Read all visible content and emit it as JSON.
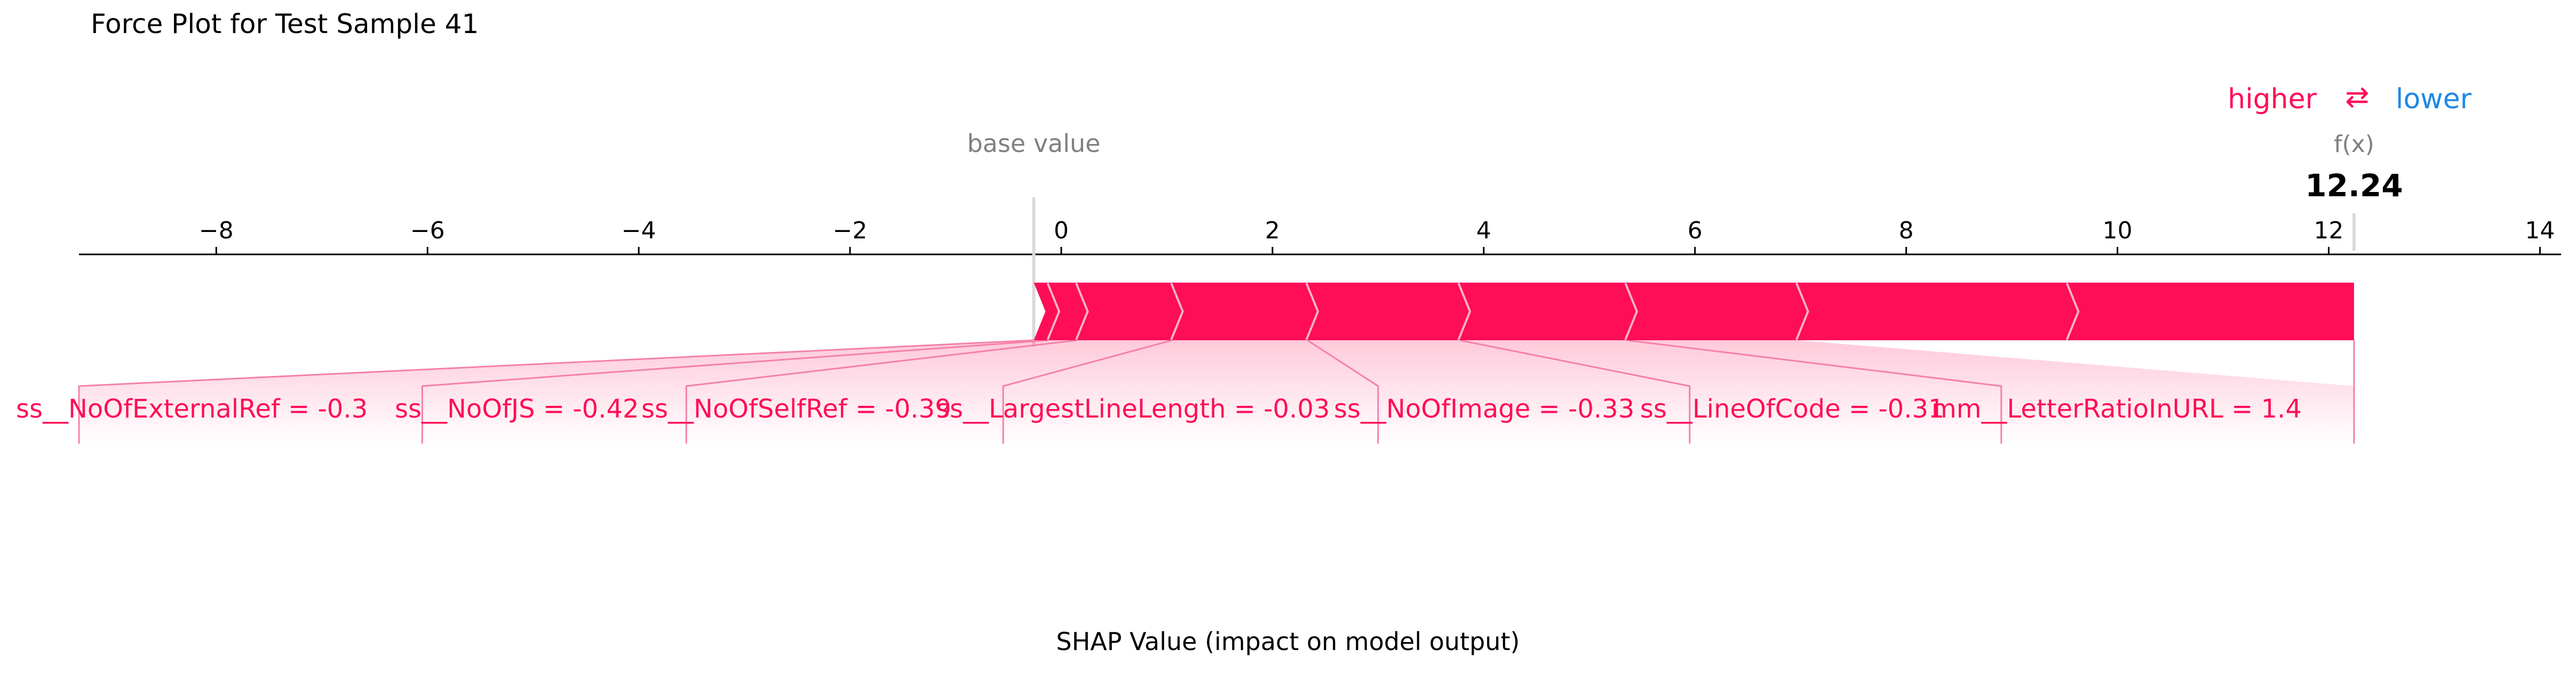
{
  "chart_data": {
    "type": "force_plot",
    "title": "Force Plot for Test Sample 41",
    "xlabel": "SHAP Value (impact on model output)",
    "xlim": [
      -9.3,
      14.2
    ],
    "ticks": [
      -8,
      -6,
      -4,
      -2,
      0,
      2,
      4,
      6,
      8,
      10,
      12,
      14
    ],
    "tick_labels": [
      "−8",
      "−6",
      "−4",
      "−2",
      "0",
      "2",
      "4",
      "6",
      "8",
      "10",
      "12",
      "14"
    ],
    "base_value": -0.26,
    "base_value_label": "base value",
    "output_value": 12.24,
    "output_label": "f(x)",
    "output_text": "12.24",
    "legend": {
      "higher": "higher",
      "arrows": "⇄",
      "lower": "lower"
    },
    "colors": {
      "positive": "#ff0d57",
      "negative": "#1e88e5",
      "connector": "#f580aa",
      "base_line": "#d9d9d9",
      "muted": "#808080"
    },
    "features": [
      {
        "label": "ss__NoOfExternalRef = -0.3",
        "start": -0.26,
        "end": -0.12
      },
      {
        "label": "ss__NoOfJS = -0.42",
        "start": -0.12,
        "end": 0.15
      },
      {
        "label": "ss__NoOfSelfRef = -0.39",
        "start": 0.15,
        "end": 1.05
      },
      {
        "label": "ss__LargestLineLength = -0.03",
        "start": 1.05,
        "end": 2.33
      },
      {
        "label": "ss__NoOfImage = -0.33",
        "start": 2.33,
        "end": 3.77
      },
      {
        "label": "ss__LineOfCode = -0.31",
        "start": 3.77,
        "end": 5.35
      },
      {
        "label": "mm__LetterRatioInURL = 1.4",
        "start": 5.35,
        "end": 6.97
      },
      {
        "label": "",
        "start": 6.97,
        "end": 9.53
      },
      {
        "label": "",
        "start": 9.53,
        "end": 12.24
      }
    ]
  }
}
